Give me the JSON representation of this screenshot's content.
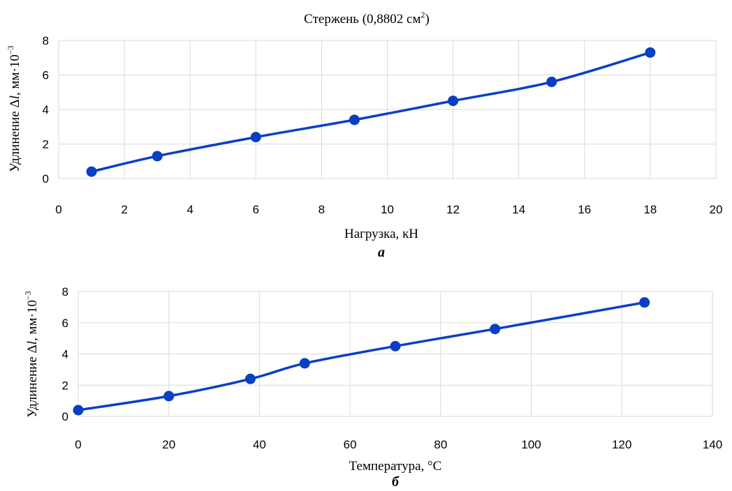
{
  "chart_data": [
    {
      "type": "line",
      "title": "Стержень (0,8802 см",
      "title_sup": "2",
      "title_close": ")",
      "xlabel": "Нагрузка, кН",
      "ylabel_pre": "Удлинение Δ",
      "ylabel_italic": "l",
      "ylabel_post": ", мм·10",
      "ylabel_sup": "−3",
      "caption": "а",
      "xlim": [
        0,
        20
      ],
      "ylim": [
        0,
        8
      ],
      "x_ticks": [
        0,
        2,
        4,
        6,
        8,
        10,
        12,
        14,
        16,
        18,
        20
      ],
      "y_ticks": [
        0,
        2,
        4,
        6,
        8
      ],
      "grid": true,
      "series": [
        {
          "x": [
            1,
            3,
            6,
            9,
            12,
            15,
            18
          ],
          "y": [
            0.4,
            1.3,
            2.4,
            3.4,
            4.5,
            5.6,
            7.3
          ]
        }
      ],
      "color": "#0a3fc4"
    },
    {
      "type": "line",
      "xlabel": "Температура, °C",
      "ylabel_pre": "Удлинение Δ",
      "ylabel_italic": "l",
      "ylabel_post": ", мм·10",
      "ylabel_sup": "−3",
      "caption": "б",
      "xlim": [
        0,
        140
      ],
      "ylim": [
        0,
        8
      ],
      "x_ticks": [
        0,
        20,
        40,
        60,
        80,
        100,
        120,
        140
      ],
      "y_ticks": [
        0,
        2,
        4,
        6,
        8
      ],
      "grid": true,
      "series": [
        {
          "x": [
            0,
            20,
            38,
            50,
            70,
            92,
            125
          ],
          "y": [
            0.4,
            1.3,
            2.4,
            3.4,
            4.5,
            5.6,
            7.3
          ]
        }
      ],
      "color": "#0a3fc4"
    }
  ]
}
